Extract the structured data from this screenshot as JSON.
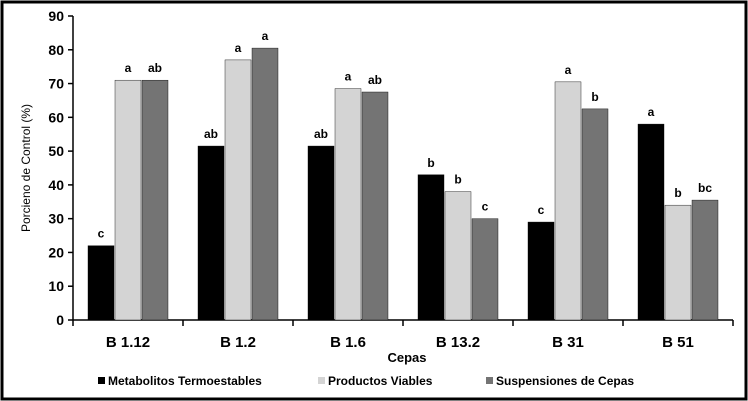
{
  "chart_data": {
    "type": "bar",
    "title": "",
    "xlabel": "Cepas",
    "ylabel": "Porcieno de Control (%)",
    "ylim": [
      0,
      90
    ],
    "yticks": [
      0,
      10,
      20,
      30,
      40,
      50,
      60,
      70,
      80,
      90
    ],
    "grid": false,
    "legend_position": "bottom",
    "categories": [
      "B 1.12",
      "B 1.2",
      "B 1.6",
      "B 13.2",
      "B 31",
      "B 51"
    ],
    "series": [
      {
        "name": "Metabolitos Termoestables",
        "color": "#000000",
        "values": [
          22,
          51.5,
          51.5,
          43,
          29,
          58
        ],
        "labels": [
          "c",
          "ab",
          "ab",
          "b",
          "c",
          "a"
        ]
      },
      {
        "name": "Productos Viables",
        "color": "#d4d4d4",
        "values": [
          71,
          77,
          68.5,
          38,
          70.5,
          34
        ],
        "labels": [
          "a",
          "a",
          "a",
          "b",
          "a",
          "b"
        ]
      },
      {
        "name": "Suspensiones de Cepas",
        "color": "#747474",
        "values": [
          71,
          80.5,
          67.5,
          30,
          62.5,
          35.5
        ],
        "labels": [
          "ab",
          "a",
          "ab",
          "c",
          "b",
          "bc"
        ]
      }
    ]
  }
}
